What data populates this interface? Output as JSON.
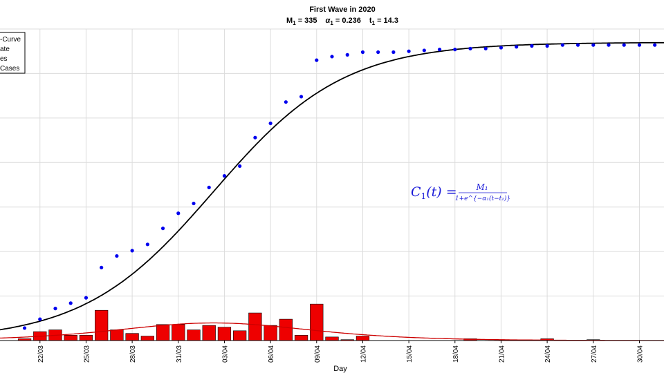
{
  "chart_data": {
    "type": "bar",
    "title": "First Wave in 2020",
    "subtitle": {
      "m_label": "M",
      "m_sub": "1",
      "m_value": " = 335",
      "a_label": "α",
      "a_sub": "1",
      "a_value": " = 0.236",
      "t_label": "t",
      "t_sub": "1",
      "t_value": " = 14.3"
    },
    "xlabel": "Day",
    "ylabel": "",
    "ylim": [
      0,
      350
    ],
    "xlim": [
      -2.6,
      40.6
    ],
    "grid": true,
    "legend_position": "top-left",
    "legend": [
      "S-Curve",
      "Rate",
      "Cases",
      "Cumulative Cases"
    ],
    "legend_visible": [
      "-Curve",
      "ate",
      "es",
      "Cases"
    ],
    "x_ticks": [
      {
        "x": 0,
        "label": "22/03"
      },
      {
        "x": 3,
        "label": "25/03"
      },
      {
        "x": 6,
        "label": "28/03"
      },
      {
        "x": 9,
        "label": "31/03"
      },
      {
        "x": 12,
        "label": "03/04"
      },
      {
        "x": 15,
        "label": "06/04"
      },
      {
        "x": 18,
        "label": "09/04"
      },
      {
        "x": 21,
        "label": "12/04"
      },
      {
        "x": 24,
        "label": "15/04"
      },
      {
        "x": 27,
        "label": "18/04"
      },
      {
        "x": 30,
        "label": "21/04"
      },
      {
        "x": 33,
        "label": "24/04"
      },
      {
        "x": 36,
        "label": "27/04"
      },
      {
        "x": 39,
        "label": "30/04"
      }
    ],
    "y_gridlines": [
      50,
      100,
      150,
      200,
      250,
      300,
      350
    ],
    "series": [
      {
        "name": "Cumulative Cases",
        "kind": "scatter",
        "color": "#0000ee",
        "x": [
          -1,
          0,
          1,
          2,
          3,
          4,
          5,
          6,
          7,
          8,
          9,
          10,
          11,
          12,
          13,
          14,
          15,
          16,
          17,
          18,
          19,
          20,
          21,
          22,
          23,
          24,
          25,
          26,
          27,
          28,
          29,
          30,
          31,
          32,
          33,
          34,
          35,
          36,
          37,
          38,
          39,
          40
        ],
        "values": [
          14,
          24,
          36,
          42,
          48,
          82,
          95,
          101,
          108,
          126,
          143,
          154,
          172,
          185,
          196,
          228,
          244,
          268,
          274,
          315,
          319,
          321,
          324,
          324,
          324,
          325,
          326,
          327,
          327,
          328,
          328,
          329,
          330,
          331,
          331,
          332,
          332,
          332,
          332,
          332,
          332,
          332
        ]
      },
      {
        "name": "Cases",
        "kind": "bar",
        "color": "#ee0000",
        "x": [
          -1,
          0,
          1,
          2,
          3,
          4,
          5,
          6,
          7,
          8,
          9,
          10,
          11,
          12,
          13,
          14,
          15,
          16,
          17,
          18,
          19,
          20,
          21,
          22,
          23,
          24,
          25,
          26,
          27,
          28,
          29,
          30,
          31,
          32,
          33,
          34,
          35,
          36,
          37,
          38,
          39,
          40
        ],
        "values": [
          2,
          10,
          12,
          6,
          6,
          34,
          12,
          8,
          5,
          18,
          18,
          12,
          17,
          15,
          11,
          31,
          17,
          24,
          6,
          41,
          4,
          1,
          5,
          0,
          0,
          0,
          0,
          0,
          0,
          2,
          0,
          0,
          0,
          0,
          2,
          0,
          0,
          1,
          0,
          0,
          0,
          0
        ]
      }
    ],
    "s_curve": {
      "name": "S-Curve",
      "color": "#000000",
      "M": 335,
      "alpha": 0.236,
      "t1": 14.3,
      "t_offset": -3
    },
    "rate_curve": {
      "name": "Rate",
      "color": "#cc0000"
    },
    "formula": {
      "lhs": "C",
      "lhs_sub": "1",
      "lhs_arg": "(t) =",
      "numerator": "M₁",
      "denominator": "1+e^{−α₁(t−t₁)}"
    }
  }
}
